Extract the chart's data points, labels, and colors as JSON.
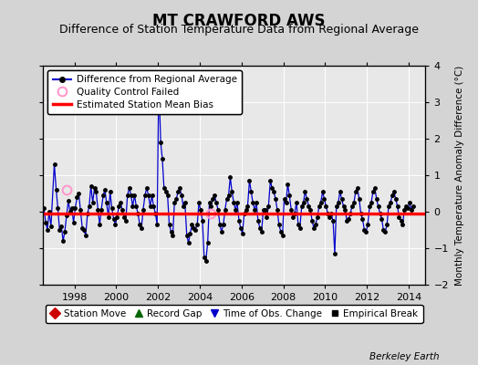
{
  "title": "MT CRAWFORD AWS",
  "subtitle": "Difference of Station Temperature Data from Regional Average",
  "ylabel_right": "Monthly Temperature Anomaly Difference (°C)",
  "ylim": [
    -2,
    4
  ],
  "xlim": [
    1996.5,
    2014.8
  ],
  "yticks": [
    -2,
    -1,
    0,
    1,
    2,
    3,
    4
  ],
  "xticks": [
    1998,
    2000,
    2002,
    2004,
    2006,
    2008,
    2010,
    2012,
    2014
  ],
  "bias_value": -0.05,
  "fig_bg_color": "#d4d4d4",
  "plot_bg_color": "#e8e8e8",
  "line_color": "#0000cc",
  "bias_color": "#ff0000",
  "qc_color": "#ff99cc",
  "title_fontsize": 12,
  "subtitle_fontsize": 9,
  "watermark": "Berkeley Earth",
  "data": [
    [
      1996.54,
      0.1
    ],
    [
      1996.63,
      -0.3
    ],
    [
      1996.71,
      -0.5
    ],
    [
      1996.79,
      0.0
    ],
    [
      1996.88,
      -0.4
    ],
    [
      1997.04,
      1.3
    ],
    [
      1997.13,
      0.6
    ],
    [
      1997.21,
      0.1
    ],
    [
      1997.29,
      -0.5
    ],
    [
      1997.38,
      -0.4
    ],
    [
      1997.46,
      -0.8
    ],
    [
      1997.54,
      -0.55
    ],
    [
      1997.63,
      -0.1
    ],
    [
      1997.71,
      0.3
    ],
    [
      1997.79,
      0.0
    ],
    [
      1997.88,
      0.1
    ],
    [
      1997.96,
      -0.3
    ],
    [
      1998.04,
      0.1
    ],
    [
      1998.13,
      0.4
    ],
    [
      1998.21,
      0.5
    ],
    [
      1998.29,
      0.05
    ],
    [
      1998.38,
      -0.45
    ],
    [
      1998.46,
      -0.5
    ],
    [
      1998.54,
      -0.65
    ],
    [
      1998.63,
      -0.05
    ],
    [
      1998.71,
      0.15
    ],
    [
      1998.79,
      0.7
    ],
    [
      1998.88,
      0.25
    ],
    [
      1998.96,
      0.65
    ],
    [
      1999.04,
      0.55
    ],
    [
      1999.13,
      0.05
    ],
    [
      1999.21,
      -0.35
    ],
    [
      1999.29,
      0.05
    ],
    [
      1999.38,
      0.45
    ],
    [
      1999.46,
      0.6
    ],
    [
      1999.54,
      0.25
    ],
    [
      1999.63,
      -0.15
    ],
    [
      1999.71,
      0.55
    ],
    [
      1999.79,
      0.1
    ],
    [
      1999.88,
      -0.2
    ],
    [
      1999.96,
      -0.35
    ],
    [
      2000.04,
      -0.15
    ],
    [
      2000.13,
      0.15
    ],
    [
      2000.21,
      0.25
    ],
    [
      2000.29,
      0.05
    ],
    [
      2000.38,
      -0.15
    ],
    [
      2000.46,
      -0.25
    ],
    [
      2000.54,
      0.45
    ],
    [
      2000.63,
      0.65
    ],
    [
      2000.71,
      0.45
    ],
    [
      2000.79,
      0.15
    ],
    [
      2000.88,
      0.45
    ],
    [
      2000.96,
      0.15
    ],
    [
      2001.04,
      -0.05
    ],
    [
      2001.13,
      -0.35
    ],
    [
      2001.21,
      -0.45
    ],
    [
      2001.29,
      0.05
    ],
    [
      2001.38,
      0.45
    ],
    [
      2001.46,
      0.65
    ],
    [
      2001.54,
      0.45
    ],
    [
      2001.63,
      0.15
    ],
    [
      2001.71,
      0.45
    ],
    [
      2001.79,
      0.15
    ],
    [
      2001.88,
      -0.05
    ],
    [
      2001.96,
      -0.35
    ],
    [
      2002.04,
      3.65
    ],
    [
      2002.13,
      1.9
    ],
    [
      2002.21,
      1.45
    ],
    [
      2002.29,
      0.65
    ],
    [
      2002.38,
      0.55
    ],
    [
      2002.46,
      0.45
    ],
    [
      2002.54,
      -0.35
    ],
    [
      2002.63,
      -0.55
    ],
    [
      2002.71,
      -0.65
    ],
    [
      2002.79,
      0.25
    ],
    [
      2002.88,
      0.35
    ],
    [
      2002.96,
      0.55
    ],
    [
      2003.04,
      0.65
    ],
    [
      2003.13,
      0.45
    ],
    [
      2003.21,
      0.15
    ],
    [
      2003.29,
      0.25
    ],
    [
      2003.38,
      -0.65
    ],
    [
      2003.46,
      -0.85
    ],
    [
      2003.54,
      -0.6
    ],
    [
      2003.63,
      -0.35
    ],
    [
      2003.71,
      -0.45
    ],
    [
      2003.79,
      -0.5
    ],
    [
      2003.88,
      -0.35
    ],
    [
      2003.96,
      0.25
    ],
    [
      2004.04,
      0.05
    ],
    [
      2004.13,
      -0.25
    ],
    [
      2004.21,
      -1.25
    ],
    [
      2004.29,
      -1.35
    ],
    [
      2004.38,
      -0.85
    ],
    [
      2004.46,
      0.25
    ],
    [
      2004.54,
      0.15
    ],
    [
      2004.63,
      0.35
    ],
    [
      2004.71,
      0.45
    ],
    [
      2004.79,
      0.25
    ],
    [
      2004.88,
      0.05
    ],
    [
      2004.96,
      -0.35
    ],
    [
      2005.04,
      -0.55
    ],
    [
      2005.13,
      -0.35
    ],
    [
      2005.21,
      0.05
    ],
    [
      2005.29,
      0.35
    ],
    [
      2005.38,
      0.45
    ],
    [
      2005.46,
      0.95
    ],
    [
      2005.54,
      0.55
    ],
    [
      2005.63,
      0.25
    ],
    [
      2005.71,
      0.05
    ],
    [
      2005.79,
      0.25
    ],
    [
      2005.88,
      -0.25
    ],
    [
      2005.96,
      -0.45
    ],
    [
      2006.04,
      -0.6
    ],
    [
      2006.13,
      -0.05
    ],
    [
      2006.21,
      0.05
    ],
    [
      2006.29,
      0.15
    ],
    [
      2006.38,
      0.85
    ],
    [
      2006.46,
      0.55
    ],
    [
      2006.54,
      0.25
    ],
    [
      2006.63,
      0.05
    ],
    [
      2006.71,
      0.25
    ],
    [
      2006.79,
      -0.25
    ],
    [
      2006.88,
      -0.45
    ],
    [
      2006.96,
      -0.55
    ],
    [
      2007.04,
      0.05
    ],
    [
      2007.13,
      0.05
    ],
    [
      2007.21,
      -0.15
    ],
    [
      2007.29,
      0.15
    ],
    [
      2007.38,
      0.85
    ],
    [
      2007.46,
      0.65
    ],
    [
      2007.54,
      0.55
    ],
    [
      2007.63,
      0.35
    ],
    [
      2007.71,
      0.05
    ],
    [
      2007.79,
      -0.35
    ],
    [
      2007.88,
      -0.55
    ],
    [
      2007.96,
      -0.65
    ],
    [
      2008.04,
      0.35
    ],
    [
      2008.13,
      0.25
    ],
    [
      2008.21,
      0.75
    ],
    [
      2008.29,
      0.45
    ],
    [
      2008.38,
      0.05
    ],
    [
      2008.46,
      -0.15
    ],
    [
      2008.54,
      -0.05
    ],
    [
      2008.63,
      0.25
    ],
    [
      2008.71,
      -0.35
    ],
    [
      2008.79,
      -0.45
    ],
    [
      2008.88,
      0.15
    ],
    [
      2008.96,
      0.25
    ],
    [
      2009.04,
      0.55
    ],
    [
      2009.13,
      0.35
    ],
    [
      2009.21,
      0.15
    ],
    [
      2009.29,
      0.05
    ],
    [
      2009.38,
      -0.25
    ],
    [
      2009.46,
      -0.45
    ],
    [
      2009.54,
      -0.35
    ],
    [
      2009.63,
      -0.15
    ],
    [
      2009.71,
      0.15
    ],
    [
      2009.79,
      0.25
    ],
    [
      2009.88,
      0.55
    ],
    [
      2009.96,
      0.35
    ],
    [
      2010.04,
      0.15
    ],
    [
      2010.13,
      -0.05
    ],
    [
      2010.21,
      -0.15
    ],
    [
      2010.29,
      -0.05
    ],
    [
      2010.38,
      -0.25
    ],
    [
      2010.46,
      -1.15
    ],
    [
      2010.54,
      0.15
    ],
    [
      2010.63,
      0.25
    ],
    [
      2010.71,
      0.55
    ],
    [
      2010.79,
      0.35
    ],
    [
      2010.88,
      0.15
    ],
    [
      2010.96,
      0.05
    ],
    [
      2011.04,
      -0.25
    ],
    [
      2011.13,
      -0.2
    ],
    [
      2011.21,
      -0.05
    ],
    [
      2011.29,
      0.15
    ],
    [
      2011.38,
      0.25
    ],
    [
      2011.46,
      0.55
    ],
    [
      2011.54,
      0.65
    ],
    [
      2011.63,
      0.35
    ],
    [
      2011.71,
      -0.05
    ],
    [
      2011.79,
      -0.2
    ],
    [
      2011.88,
      -0.5
    ],
    [
      2011.96,
      -0.55
    ],
    [
      2012.04,
      -0.35
    ],
    [
      2012.13,
      0.15
    ],
    [
      2012.21,
      0.25
    ],
    [
      2012.29,
      0.55
    ],
    [
      2012.38,
      0.65
    ],
    [
      2012.46,
      0.35
    ],
    [
      2012.54,
      0.15
    ],
    [
      2012.63,
      -0.05
    ],
    [
      2012.71,
      -0.2
    ],
    [
      2012.79,
      -0.5
    ],
    [
      2012.88,
      -0.55
    ],
    [
      2012.96,
      -0.35
    ],
    [
      2013.04,
      0.15
    ],
    [
      2013.13,
      0.25
    ],
    [
      2013.21,
      0.45
    ],
    [
      2013.29,
      0.55
    ],
    [
      2013.38,
      0.35
    ],
    [
      2013.46,
      0.15
    ],
    [
      2013.54,
      -0.15
    ],
    [
      2013.63,
      -0.25
    ],
    [
      2013.71,
      -0.35
    ],
    [
      2013.79,
      0.05
    ],
    [
      2013.88,
      0.15
    ],
    [
      2013.96,
      0.1
    ],
    [
      2014.04,
      0.25
    ],
    [
      2014.13,
      0.05
    ],
    [
      2014.21,
      0.15
    ]
  ],
  "qc_points": [
    [
      1997.63,
      0.6
    ],
    [
      2004.54,
      -0.05
    ]
  ],
  "legend1_labels": [
    "Difference from Regional Average",
    "Quality Control Failed",
    "Estimated Station Mean Bias"
  ],
  "legend2_labels": [
    "Station Move",
    "Record Gap",
    "Time of Obs. Change",
    "Empirical Break"
  ]
}
